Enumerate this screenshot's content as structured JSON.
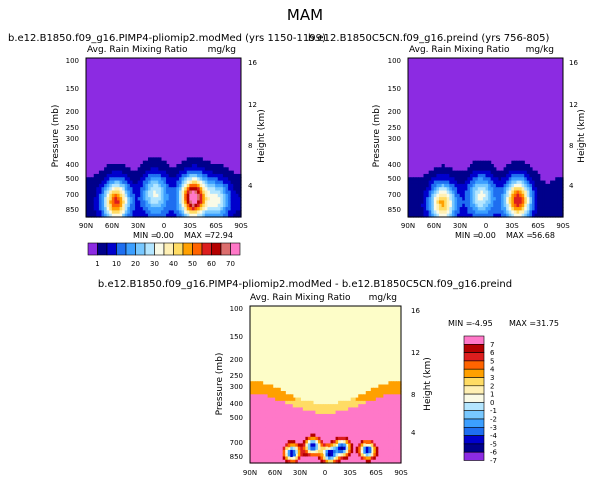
{
  "figure_title": "MAM",
  "chart_data": [
    {
      "type": "heatmap",
      "id": "p1",
      "title": "b.e12.B1850.f09_g16.PIMP4-pliomip2.modMed (yrs 1150-1199)",
      "subtitle_left": "Avg. Rain Mixing Ratio",
      "subtitle_right": "mg/kg",
      "xlabel": "",
      "ylabel": "Pressure (mb)",
      "y2label": "Height (km)",
      "x_ticks": [
        "90N",
        "60N",
        "30N",
        "0",
        "30S",
        "60S",
        "90S"
      ],
      "x_range": [
        90,
        -90
      ],
      "y_ticks": [
        "100",
        "150",
        "200",
        "250",
        "300",
        "400",
        "500",
        "700",
        "850"
      ],
      "y2_ticks": [
        "16",
        "12",
        "8",
        "4"
      ],
      "y_range": [
        100,
        1000
      ],
      "min_label": "MIN =",
      "min_value": "0.00",
      "max_label": "MAX =",
      "max_value": "72.94",
      "field_min": 0.0,
      "field_max": 72.94,
      "peaks": [
        {
          "lat": 55,
          "p": 800,
          "value": 55
        },
        {
          "lat": 10,
          "p": 700,
          "value": 25
        },
        {
          "lat": -35,
          "p": 750,
          "value": 72.94
        },
        {
          "lat": -62,
          "p": 780,
          "value": 30
        }
      ]
    },
    {
      "type": "heatmap",
      "id": "p2",
      "title": "b.e12.B1850C5CN.f09_g16.preind (yrs 756-805)",
      "subtitle_left": "Avg. Rain Mixing Ratio",
      "subtitle_right": "mg/kg",
      "xlabel": "",
      "ylabel": "Pressure (mb)",
      "y2label": "Height (km)",
      "x_ticks": [
        "90N",
        "60N",
        "30N",
        "0",
        "30S",
        "60S",
        "90S"
      ],
      "x_range": [
        90,
        -90
      ],
      "y_ticks": [
        "100",
        "150",
        "200",
        "250",
        "300",
        "400",
        "500",
        "700",
        "850"
      ],
      "y2_ticks": [
        "16",
        "12",
        "8",
        "4"
      ],
      "y_range": [
        100,
        1000
      ],
      "min_label": "MIN =",
      "min_value": "0.00",
      "max_label": "MAX =",
      "max_value": "56.68",
      "field_min": 0.0,
      "field_max": 56.68,
      "peaks": [
        {
          "lat": 50,
          "p": 820,
          "value": 45
        },
        {
          "lat": 5,
          "p": 720,
          "value": 25
        },
        {
          "lat": -38,
          "p": 780,
          "value": 56.68
        }
      ]
    },
    {
      "type": "heatmap",
      "id": "p3",
      "title": "b.e12.B1850.f09_g16.PIMP4-pliomip2.modMed - b.e12.B1850C5CN.f09_g16.preind",
      "subtitle_left": "Avg. Rain Mixing Ratio",
      "subtitle_right": "mg/kg",
      "xlabel": "",
      "ylabel": "Pressure (mb)",
      "y2label": "Height (km)",
      "x_ticks": [
        "90N",
        "60N",
        "30N",
        "0",
        "30S",
        "60S",
        "90S"
      ],
      "x_range": [
        90,
        -90
      ],
      "y_ticks": [
        "100",
        "150",
        "200",
        "250",
        "300",
        "400",
        "500",
        "700",
        "850"
      ],
      "y2_ticks": [
        "16",
        "12",
        "8",
        "4"
      ],
      "y_range": [
        100,
        1000
      ],
      "min_label": "MIN =",
      "min_value": "-4.95",
      "max_label": "MAX =",
      "max_value": "31.75",
      "field_min": -4.95,
      "field_max": 31.75
    }
  ],
  "colorbar_main": {
    "labels": [
      "1",
      "10",
      "20",
      "30",
      "40",
      "50",
      "60",
      "70"
    ],
    "colors": [
      "#8c2be2",
      "#00008b",
      "#0000cd",
      "#1e6ef0",
      "#3c9fff",
      "#78c8ff",
      "#b4e6ff",
      "#fafae6",
      "#fff0b4",
      "#ffdc64",
      "#ffa000",
      "#ff6400",
      "#dc1e1e",
      "#b40000",
      "#dc6e6e",
      "#ff78c8"
    ]
  },
  "colorbar_diff": {
    "labels": [
      "7",
      "6",
      "5",
      "4",
      "3",
      "2",
      "1",
      "0",
      "-1",
      "-2",
      "-3",
      "-4",
      "-5",
      "-6",
      "-7"
    ],
    "colors": [
      "#ff78c8",
      "#b40000",
      "#dc1e1e",
      "#ff6400",
      "#ffa000",
      "#ffdc64",
      "#fff0b4",
      "#fafae6",
      "#b4e6ff",
      "#78c8ff",
      "#3c9fff",
      "#1e6ef0",
      "#0000cd",
      "#00008b",
      "#8c2be2"
    ]
  }
}
